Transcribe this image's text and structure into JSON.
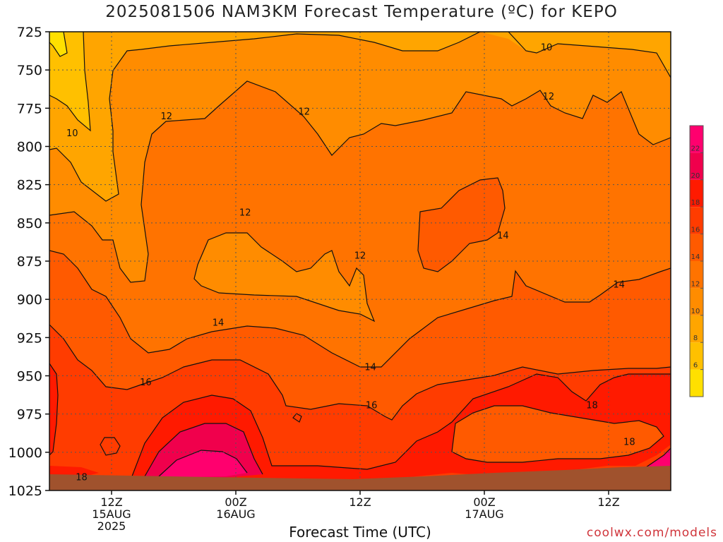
{
  "title": "2025081506 NAM3KM Forecast Temperature (ºC) for KEPO",
  "credit": "coolwx.com/models",
  "chart_data": {
    "type": "heatmap",
    "title": "2025081506 NAM3KM Forecast Temperature (ºC) for KEPO",
    "xlabel": "Forecast Time (UTC)",
    "ylabel": "",
    "y_axis": {
      "scale": "pressure",
      "inverted": true,
      "range": [
        1025,
        725
      ],
      "ticks": [
        "725",
        "750",
        "775",
        "800",
        "825",
        "850",
        "875",
        "900",
        "925",
        "950",
        "975",
        "1000",
        "1025"
      ]
    },
    "x_axis": {
      "range_hours": [
        6,
        66
      ],
      "ticks": [
        {
          "hour": 12,
          "lines": [
            "12Z",
            "15AUG",
            "2025"
          ]
        },
        {
          "hour": 24,
          "lines": [
            "00Z",
            "16AUG"
          ]
        },
        {
          "hour": 36,
          "lines": [
            "12Z"
          ]
        },
        {
          "hour": 48,
          "lines": [
            "00Z",
            "17AUG"
          ]
        },
        {
          "hour": 60,
          "lines": [
            "12Z"
          ]
        }
      ]
    },
    "grid": true,
    "legend": {
      "placement": "right",
      "labels": [
        "6",
        "8",
        "10",
        "12",
        "14",
        "16",
        "18",
        "20",
        "22"
      ],
      "levels": [
        {
          "min": 4,
          "max": 6,
          "color": "#ffe000"
        },
        {
          "min": 6,
          "max": 8,
          "color": "#ffc000"
        },
        {
          "min": 8,
          "max": 10,
          "color": "#ffa500"
        },
        {
          "min": 10,
          "max": 12,
          "color": "#ff8c00"
        },
        {
          "min": 12,
          "max": 14,
          "color": "#ff7300"
        },
        {
          "min": 14,
          "max": 16,
          "color": "#ff5a00"
        },
        {
          "min": 16,
          "max": 18,
          "color": "#ff3c00"
        },
        {
          "min": 18,
          "max": 20,
          "color": "#ff1a00"
        },
        {
          "min": 20,
          "max": 22,
          "color": "#f0004c"
        },
        {
          "min": 22,
          "max": 24,
          "color": "#ff006e"
        }
      ]
    },
    "contour_labels": [
      {
        "value": "10",
        "hour": 54.0,
        "p": 735
      },
      {
        "value": "10",
        "hour": 8.2,
        "p": 791
      },
      {
        "value": "12",
        "hour": 17.3,
        "p": 780
      },
      {
        "value": "12",
        "hour": 30.6,
        "p": 777
      },
      {
        "value": "12",
        "hour": 54.2,
        "p": 767
      },
      {
        "value": "12",
        "hour": 24.9,
        "p": 843
      },
      {
        "value": "12",
        "hour": 36.0,
        "p": 871
      },
      {
        "value": "14",
        "hour": 49.8,
        "p": 858
      },
      {
        "value": "14",
        "hour": 61.0,
        "p": 890
      },
      {
        "value": "14",
        "hour": 22.3,
        "p": 915
      },
      {
        "value": "14",
        "hour": 37.0,
        "p": 944
      },
      {
        "value": "16",
        "hour": 15.3,
        "p": 954
      },
      {
        "value": "16",
        "hour": 37.1,
        "p": 969
      },
      {
        "value": "18",
        "hour": 58.4,
        "p": 969
      },
      {
        "value": "18",
        "hour": 62.0,
        "p": 993
      },
      {
        "value": "18",
        "hour": 9.1,
        "p": 1016
      }
    ]
  }
}
